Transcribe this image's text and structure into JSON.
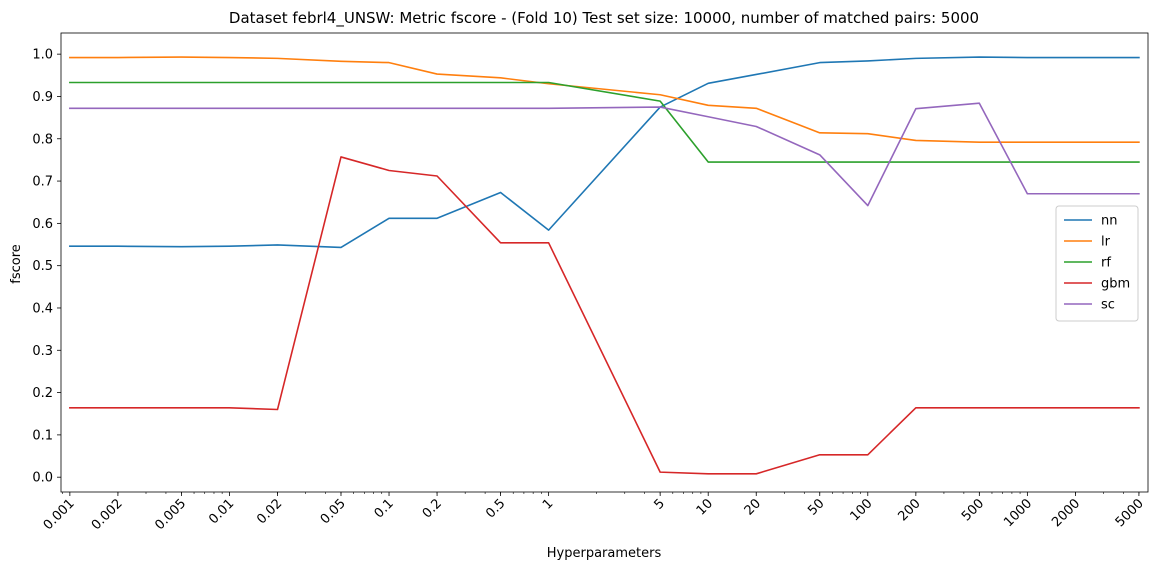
{
  "chart_data": {
    "type": "line",
    "title": "Dataset febrl4_UNSW: Metric fscore - (Fold 10) Test set size: 10000, number of matched pairs: 5000",
    "xlabel": "Hyperparameters",
    "ylabel": "fscore",
    "x_scale": "log",
    "xlim": [
      0.00088,
      5700
    ],
    "ylim": [
      -0.035,
      1.05
    ],
    "x": [
      0.001,
      0.002,
      0.005,
      0.01,
      0.02,
      0.05,
      0.1,
      0.2,
      0.5,
      1,
      5,
      10,
      20,
      50,
      100,
      200,
      500,
      1000,
      2000,
      5000
    ],
    "x_tick_labels": [
      "0.001",
      "0.002",
      "0.005",
      "0.01",
      "0.02",
      "0.05",
      "0.1",
      "0.2",
      "0.5",
      "1",
      "5",
      "10",
      "20",
      "50",
      "100",
      "200",
      "500",
      "1000",
      "2000",
      "5000"
    ],
    "y_ticks": [
      0.0,
      0.1,
      0.2,
      0.3,
      0.4,
      0.5,
      0.6,
      0.7,
      0.8,
      0.9,
      1.0
    ],
    "y_tick_labels": [
      "0.0",
      "0.1",
      "0.2",
      "0.3",
      "0.4",
      "0.5",
      "0.6",
      "0.7",
      "0.8",
      "0.9",
      "1.0"
    ],
    "grid": false,
    "legend_position": "center-right",
    "series": [
      {
        "name": "nn",
        "color": "#1f77b4",
        "values": [
          0.546,
          0.546,
          0.545,
          0.546,
          0.549,
          0.543,
          0.612,
          0.612,
          0.673,
          0.584,
          0.875,
          0.931,
          0.952,
          0.98,
          0.984,
          0.99,
          0.993,
          0.992,
          0.992,
          0.992
        ]
      },
      {
        "name": "lr",
        "color": "#ff7f0e",
        "values": [
          0.992,
          0.992,
          0.993,
          0.992,
          0.99,
          0.983,
          0.98,
          0.953,
          0.944,
          0.93,
          0.904,
          0.879,
          0.872,
          0.814,
          0.812,
          0.796,
          0.792,
          0.792,
          0.792,
          0.792
        ]
      },
      {
        "name": "rf",
        "color": "#2ca02c",
        "values": [
          0.933,
          0.933,
          0.933,
          0.933,
          0.933,
          0.933,
          0.933,
          0.933,
          0.933,
          0.933,
          0.889,
          0.745,
          0.745,
          0.745,
          0.745,
          0.745,
          0.745,
          0.745,
          0.745,
          0.745
        ]
      },
      {
        "name": "gbm",
        "color": "#d62728",
        "values": [
          0.164,
          0.164,
          0.164,
          0.164,
          0.16,
          0.757,
          0.725,
          0.712,
          0.554,
          0.554,
          0.012,
          0.008,
          0.008,
          0.053,
          0.053,
          0.164,
          0.164,
          0.164,
          0.164,
          0.164
        ]
      },
      {
        "name": "sc",
        "color": "#9467bd",
        "values": [
          0.872,
          0.872,
          0.872,
          0.872,
          0.872,
          0.872,
          0.872,
          0.872,
          0.872,
          0.872,
          0.875,
          0.852,
          0.829,
          0.762,
          0.642,
          0.871,
          0.884,
          0.67,
          0.67,
          0.67
        ]
      }
    ]
  }
}
